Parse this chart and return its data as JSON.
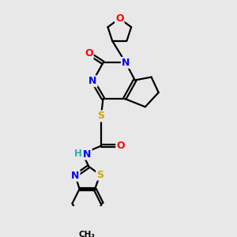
{
  "background_color": "#e8e8e8",
  "atom_colors": {
    "O": "#ff0000",
    "N": "#0000ff",
    "S": "#ccaa00",
    "H": "#20b2aa",
    "C": "#000000"
  },
  "bond_color": "#000000",
  "bond_width": 1.6,
  "figsize": [
    3.0,
    3.0
  ],
  "dpi": 100
}
